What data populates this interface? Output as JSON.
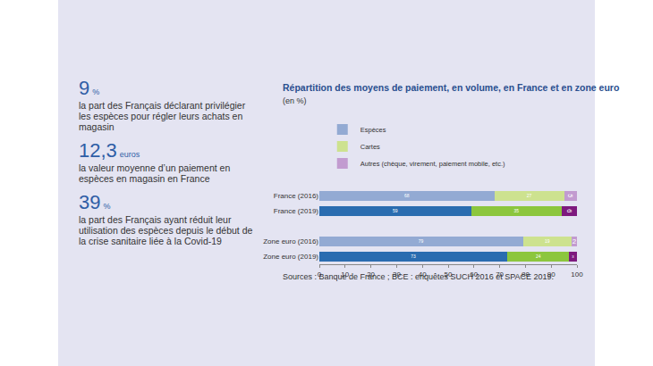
{
  "key_figures": [
    {
      "figure": "9",
      "unit": "%",
      "text": "la part des Français déclarant privilégier les espèces pour régler leurs achats en magasin"
    },
    {
      "figure": "12,3",
      "unit": "euros",
      "text": "la valeur moyenne d’un paiement en espèces en magasin en France"
    },
    {
      "figure": "39",
      "unit": "%",
      "text": "la part des Français ayant réduit leur utilisation des espèces depuis le début de la crise sanitaire liée à la Covid-19"
    }
  ],
  "chart_data": {
    "type": "bar",
    "title": "Répartition des moyens de paiement, en volume, en France et en zone euro",
    "subtitle": "(en %)",
    "source": "Sources : Banque de France ; BCE : enquêtes SUCH 2016 et SPACE 2019.",
    "orientation": "horizontal",
    "stacked": true,
    "data_labels": true,
    "grid": false,
    "legend": "top",
    "categories": [
      "France (2016)",
      "France (2019)",
      null,
      "Zone euro (2016)",
      "Zone euro (2019)"
    ],
    "series": [
      {
        "name": "Espèces",
        "color": "#2a6cb0",
        "colors": [
          "#93aad3",
          "#2a6cb0",
          null,
          "#93aad3",
          "#2a6cb0"
        ],
        "values": [
          68,
          59,
          null,
          79,
          73
        ]
      },
      {
        "name": "Cartes",
        "color": "#8cc63e",
        "colors": [
          "#cde28f",
          "#8cc63e",
          null,
          "#cde28f",
          "#8cc63e"
        ],
        "values": [
          27,
          35,
          null,
          19,
          24
        ]
      },
      {
        "name": "Autres (chèque, virement, paiement mobile, etc.)",
        "color": "#7d1a7e",
        "colors": [
          "#c29bd0",
          "#7d1a7e",
          null,
          "#c29bd0",
          "#7d1a7e"
        ],
        "values": [
          5,
          6,
          null,
          2,
          3
        ]
      }
    ],
    "xlim": [
      0,
      100
    ],
    "xticks": [
      0,
      10,
      20,
      30,
      40,
      50,
      60,
      70,
      80,
      90,
      100
    ]
  }
}
